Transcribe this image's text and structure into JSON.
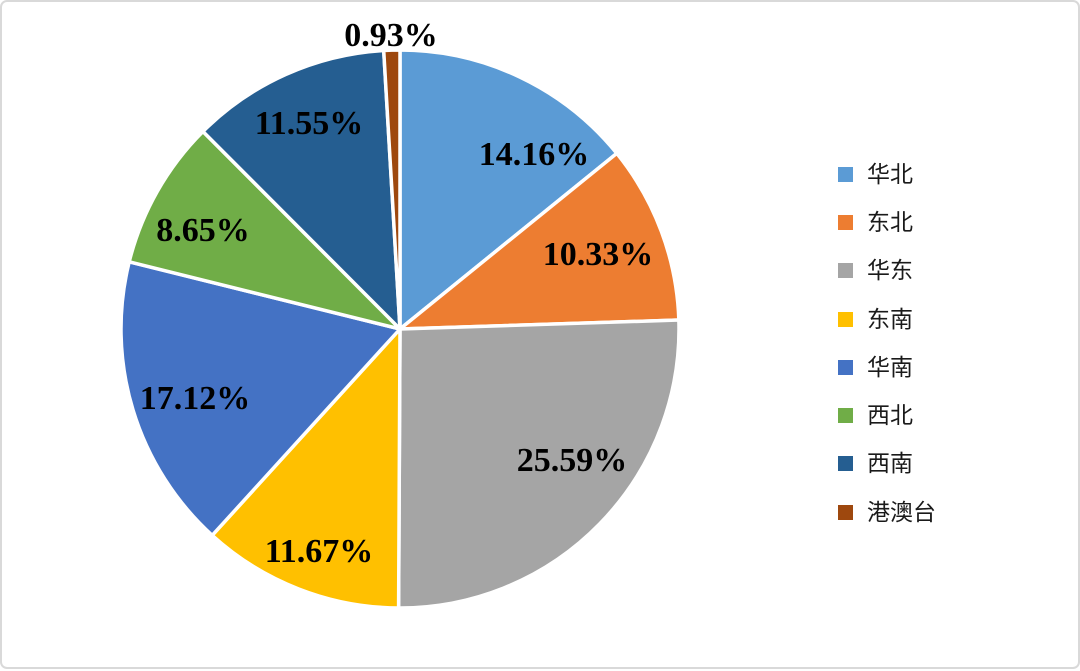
{
  "chart_data": {
    "type": "pie",
    "title": "",
    "legend_position": "right",
    "start_angle_deg": 0,
    "direction": "clockwise",
    "total_percent": 100,
    "label_color": "#000000",
    "slice_stroke_color": "#FFFFFF",
    "slices": [
      {
        "label": "华北",
        "value": 14.16,
        "pct_label": "14.16%",
        "color": "#5B9BD5"
      },
      {
        "label": "东北",
        "value": 10.33,
        "pct_label": "10.33%",
        "color": "#ED7D31"
      },
      {
        "label": "华东",
        "value": 25.59,
        "pct_label": "25.59%",
        "color": "#A5A5A5"
      },
      {
        "label": "东南",
        "value": 11.67,
        "pct_label": "11.67%",
        "color": "#FFC000"
      },
      {
        "label": "华南",
        "value": 17.12,
        "pct_label": "17.12%",
        "color": "#4472C4"
      },
      {
        "label": "西北",
        "value": 8.65,
        "pct_label": "8.65%",
        "color": "#70AD47"
      },
      {
        "label": "西南",
        "value": 11.55,
        "pct_label": "11.55%",
        "color": "#255E91"
      },
      {
        "label": "港澳台",
        "value": 0.93,
        "pct_label": "0.93%",
        "color": "#9E480E"
      }
    ]
  }
}
